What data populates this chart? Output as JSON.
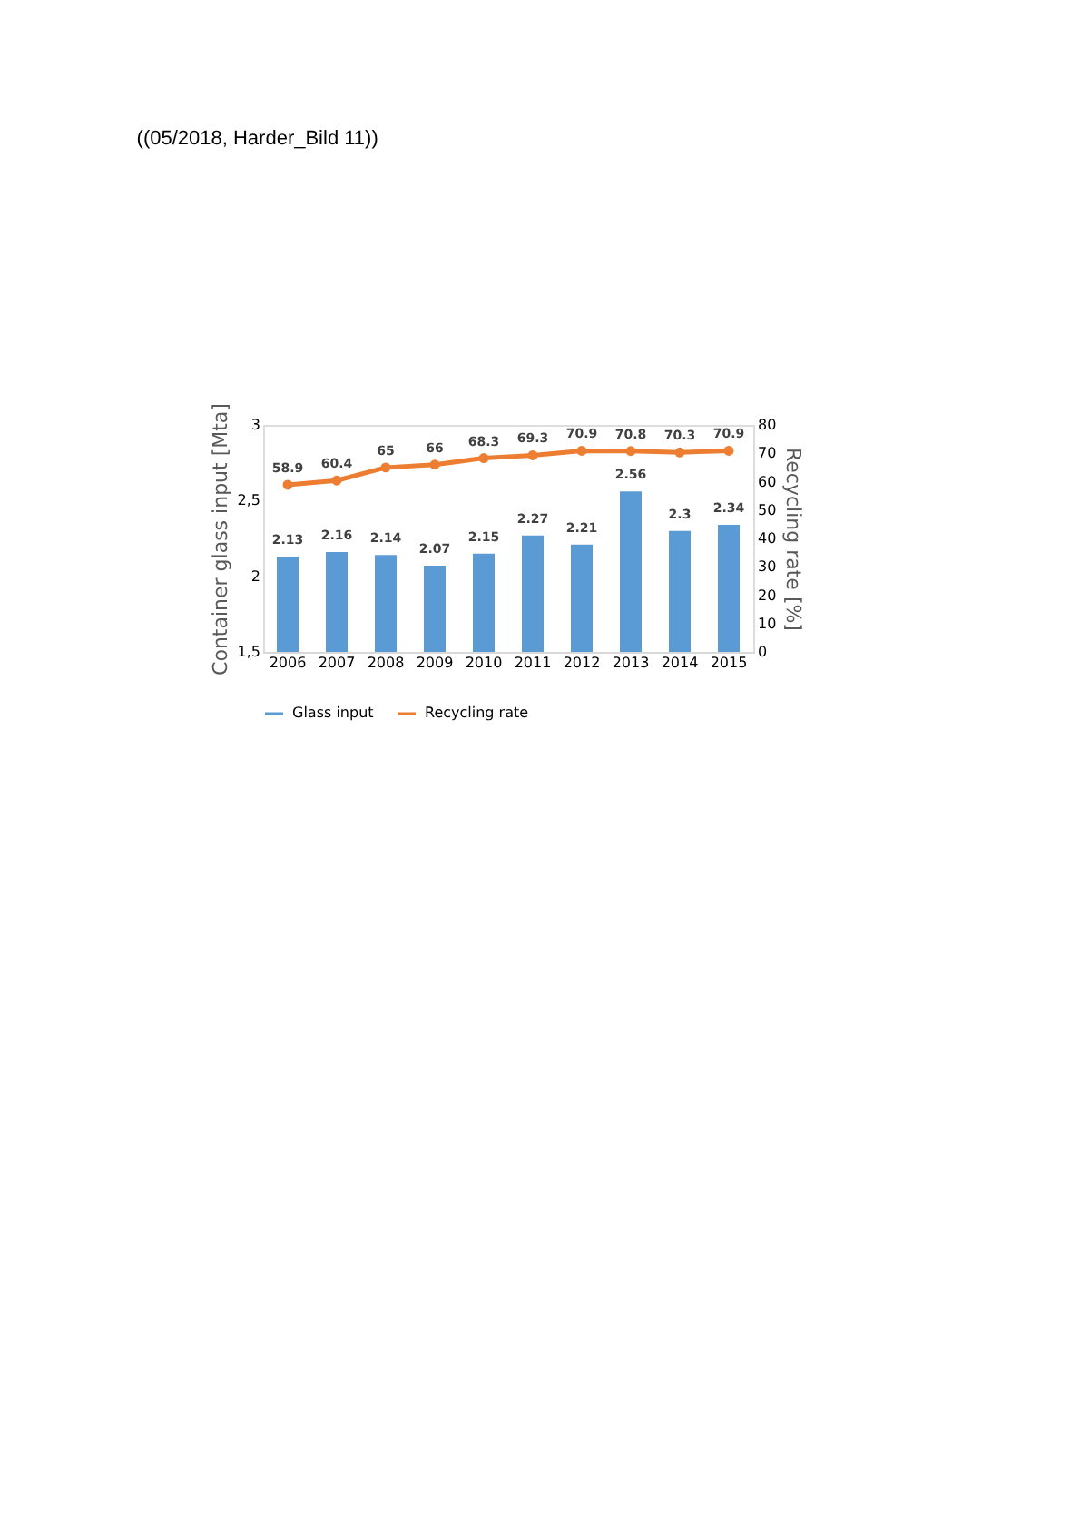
{
  "chart_data": {
    "type": "bar",
    "title": "((05/2018, Harder_Bild 11))",
    "categories": [
      "2006",
      "2007",
      "2008",
      "2009",
      "2010",
      "2011",
      "2012",
      "2013",
      "2014",
      "2015"
    ],
    "series": [
      {
        "name": "Glass input",
        "color": "#5b9bd5",
        "values": [
          2.13,
          2.16,
          2.14,
          2.07,
          2.15,
          2.27,
          2.21,
          2.56,
          2.3,
          2.34
        ]
      },
      {
        "name": "Recycling rate",
        "type": "line",
        "axis": "y2",
        "color": "#ed7d31",
        "marker": "circle",
        "values": [
          58.9,
          60.4,
          65,
          66,
          68.3,
          69.3,
          70.9,
          70.8,
          70.3,
          70.9
        ]
      }
    ],
    "ylabel": "Container glass input [Mta]",
    "y2label": "Recycling rate [%]",
    "ylim": [
      1.5,
      3
    ],
    "yticks": [
      {
        "value": 1.5,
        "label": "1,5"
      },
      2,
      {
        "value": 2.5,
        "label": "2,5"
      },
      3
    ],
    "y2lim": [
      0,
      80
    ],
    "y2ticks": [
      0,
      10,
      20,
      30,
      40,
      50,
      60,
      70,
      80
    ],
    "data_labels": true,
    "grid": false,
    "legend": "bottom"
  }
}
